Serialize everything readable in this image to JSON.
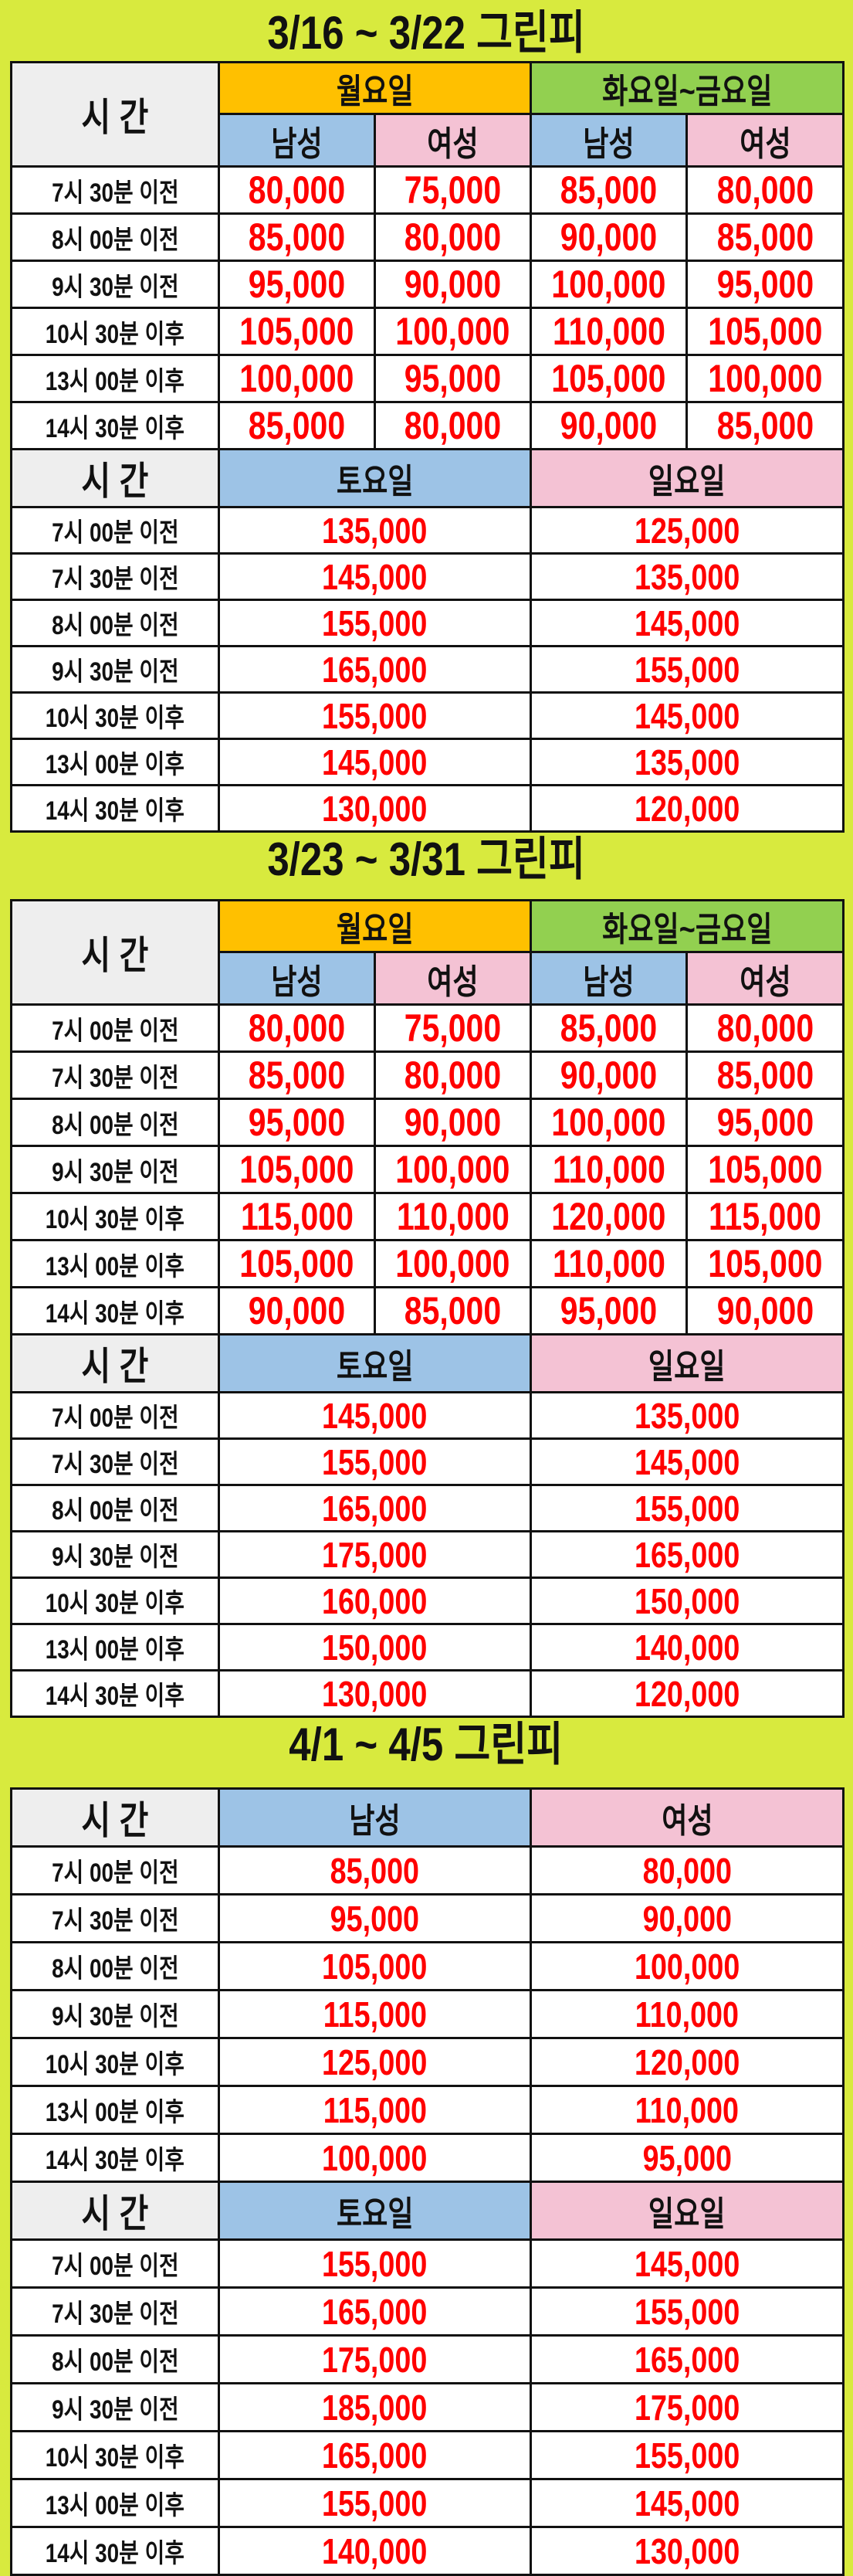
{
  "colors": {
    "background": "#d8ea3e",
    "monday": "#ffc000",
    "tue_fri": "#92d050",
    "male": "#9dc3e6",
    "female": "#f4c2d4",
    "time_header": "#eeeeee",
    "price": "#ff0000"
  },
  "sections": [
    {
      "title": "3/16 ~ 3/22 그린피",
      "weekday": {
        "time_header": "시    간",
        "groups": [
          "월요일",
          "화요일~금요일"
        ],
        "genders": [
          "남성",
          "여성",
          "남성",
          "여성"
        ],
        "rows": [
          {
            "time": "7시 30분 이전",
            "prices": [
              "80,000",
              "75,000",
              "85,000",
              "80,000"
            ]
          },
          {
            "time": "8시 00분 이전",
            "prices": [
              "85,000",
              "80,000",
              "90,000",
              "85,000"
            ]
          },
          {
            "time": "9시 30분 이전",
            "prices": [
              "95,000",
              "90,000",
              "100,000",
              "95,000"
            ]
          },
          {
            "time": "10시 30분 이후",
            "prices": [
              "105,000",
              "100,000",
              "110,000",
              "105,000"
            ]
          },
          {
            "time": "13시 00분 이후",
            "prices": [
              "100,000",
              "95,000",
              "105,000",
              "100,000"
            ]
          },
          {
            "time": "14시 30분 이후",
            "prices": [
              "85,000",
              "80,000",
              "90,000",
              "85,000"
            ]
          }
        ]
      },
      "weekend": {
        "time_header": "시    간",
        "columns": [
          "토요일",
          "일요일"
        ],
        "rows": [
          {
            "time": "7시 00분 이전",
            "prices": [
              "135,000",
              "125,000"
            ]
          },
          {
            "time": "7시 30분 이전",
            "prices": [
              "145,000",
              "135,000"
            ]
          },
          {
            "time": "8시 00분 이전",
            "prices": [
              "155,000",
              "145,000"
            ]
          },
          {
            "time": "9시 30분 이전",
            "prices": [
              "165,000",
              "155,000"
            ]
          },
          {
            "time": "10시 30분 이후",
            "prices": [
              "155,000",
              "145,000"
            ]
          },
          {
            "time": "13시 00분 이후",
            "prices": [
              "145,000",
              "135,000"
            ]
          },
          {
            "time": "14시 30분 이후",
            "prices": [
              "130,000",
              "120,000"
            ]
          }
        ]
      }
    },
    {
      "title": "3/23 ~ 3/31 그린피",
      "weekday": {
        "time_header": "시    간",
        "groups": [
          "월요일",
          "화요일~금요일"
        ],
        "genders": [
          "남성",
          "여성",
          "남성",
          "여성"
        ],
        "rows": [
          {
            "time": "7시 00분 이전",
            "prices": [
              "80,000",
              "75,000",
              "85,000",
              "80,000"
            ]
          },
          {
            "time": "7시 30분 이전",
            "prices": [
              "85,000",
              "80,000",
              "90,000",
              "85,000"
            ]
          },
          {
            "time": "8시 00분 이전",
            "prices": [
              "95,000",
              "90,000",
              "100,000",
              "95,000"
            ]
          },
          {
            "time": "9시 30분 이전",
            "prices": [
              "105,000",
              "100,000",
              "110,000",
              "105,000"
            ]
          },
          {
            "time": "10시 30분 이후",
            "prices": [
              "115,000",
              "110,000",
              "120,000",
              "115,000"
            ]
          },
          {
            "time": "13시 00분 이후",
            "prices": [
              "105,000",
              "100,000",
              "110,000",
              "105,000"
            ]
          },
          {
            "time": "14시 30분 이후",
            "prices": [
              "90,000",
              "85,000",
              "95,000",
              "90,000"
            ]
          }
        ]
      },
      "weekend": {
        "time_header": "시    간",
        "columns": [
          "토요일",
          "일요일"
        ],
        "rows": [
          {
            "time": "7시 00분 이전",
            "prices": [
              "145,000",
              "135,000"
            ]
          },
          {
            "time": "7시 30분 이전",
            "prices": [
              "155,000",
              "145,000"
            ]
          },
          {
            "time": "8시 00분 이전",
            "prices": [
              "165,000",
              "155,000"
            ]
          },
          {
            "time": "9시 30분 이전",
            "prices": [
              "175,000",
              "165,000"
            ]
          },
          {
            "time": "10시 30분 이후",
            "prices": [
              "160,000",
              "150,000"
            ]
          },
          {
            "time": "13시 00분 이후",
            "prices": [
              "150,000",
              "140,000"
            ]
          },
          {
            "time": "14시 30분 이후",
            "prices": [
              "130,000",
              "120,000"
            ]
          }
        ]
      }
    },
    {
      "title": "4/1 ~ 4/5 그린피",
      "weekday_simple": {
        "time_header": "시    간",
        "columns": [
          "남성",
          "여성"
        ],
        "rows": [
          {
            "time": "7시 00분 이전",
            "prices": [
              "85,000",
              "80,000"
            ]
          },
          {
            "time": "7시 30분 이전",
            "prices": [
              "95,000",
              "90,000"
            ]
          },
          {
            "time": "8시 00분 이전",
            "prices": [
              "105,000",
              "100,000"
            ]
          },
          {
            "time": "9시 30분 이전",
            "prices": [
              "115,000",
              "110,000"
            ]
          },
          {
            "time": "10시 30분 이후",
            "prices": [
              "125,000",
              "120,000"
            ]
          },
          {
            "time": "13시 00분 이후",
            "prices": [
              "115,000",
              "110,000"
            ]
          },
          {
            "time": "14시 30분 이후",
            "prices": [
              "100,000",
              "95,000"
            ]
          }
        ]
      },
      "weekend": {
        "time_header": "시    간",
        "columns": [
          "토요일",
          "일요일"
        ],
        "rows": [
          {
            "time": "7시 00분 이전",
            "prices": [
              "155,000",
              "145,000"
            ]
          },
          {
            "time": "7시 30분 이전",
            "prices": [
              "165,000",
              "155,000"
            ]
          },
          {
            "time": "8시 00분 이전",
            "prices": [
              "175,000",
              "165,000"
            ]
          },
          {
            "time": "9시 30분 이전",
            "prices": [
              "185,000",
              "175,000"
            ]
          },
          {
            "time": "10시 30분 이후",
            "prices": [
              "165,000",
              "155,000"
            ]
          },
          {
            "time": "13시 00분 이후",
            "prices": [
              "155,000",
              "145,000"
            ]
          },
          {
            "time": "14시 30분 이후",
            "prices": [
              "140,000",
              "130,000"
            ]
          }
        ]
      }
    }
  ]
}
